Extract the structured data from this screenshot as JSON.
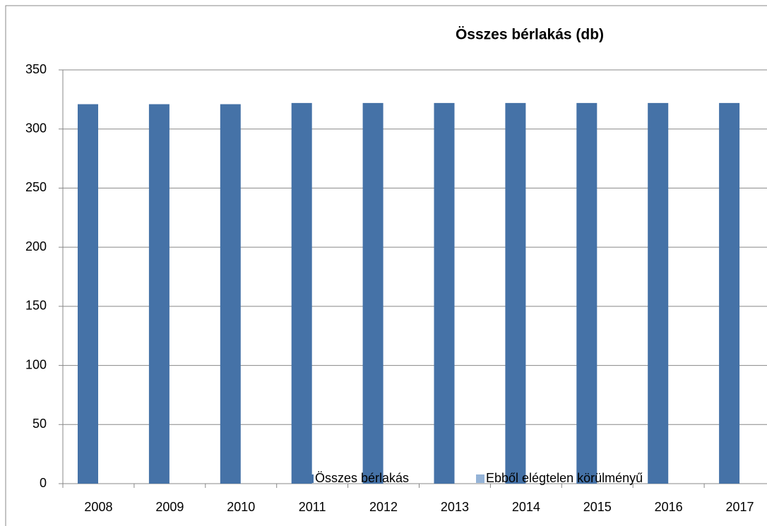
{
  "chart_data": {
    "type": "bar",
    "title": "Összes bérlakás (db)",
    "categories": [
      "2008",
      "2009",
      "2010",
      "2011",
      "2012",
      "2013",
      "2014",
      "2015",
      "2016",
      "2017"
    ],
    "series": [
      {
        "name": "Összes bérlakás",
        "color": "#4572a7",
        "values": [
          321,
          321,
          321,
          322,
          322,
          322,
          322,
          322,
          322,
          322
        ]
      },
      {
        "name": "Ebből elégtelen körülményű",
        "color": "#95b3d7",
        "values": [
          null,
          null,
          null,
          null,
          null,
          null,
          null,
          null,
          null,
          null
        ]
      }
    ],
    "ylim": [
      0,
      350
    ],
    "yticks": [
      0,
      50,
      100,
      150,
      200,
      250,
      300,
      350
    ],
    "grid": true,
    "legend": "bottom"
  }
}
